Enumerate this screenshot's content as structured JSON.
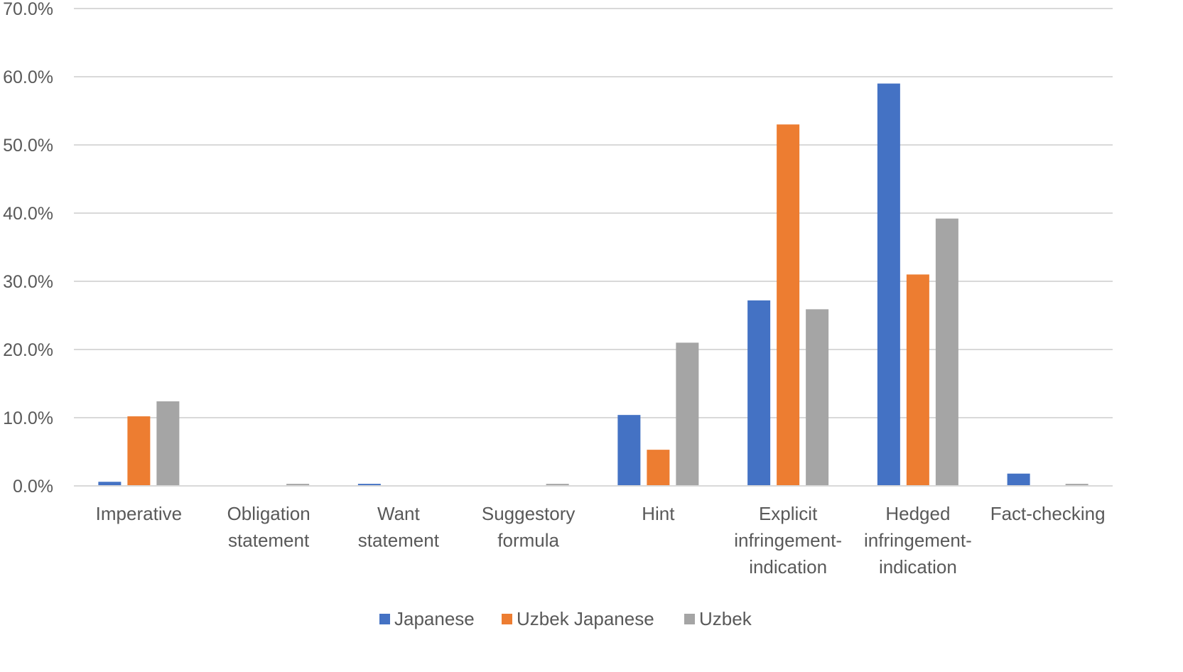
{
  "chart_data": {
    "type": "bar",
    "title": "",
    "xlabel": "",
    "ylabel": "",
    "ylim": [
      0,
      70
    ],
    "ytick_step": 10,
    "ytick_labels": [
      "0.0%",
      "10.0%",
      "20.0%",
      "30.0%",
      "40.0%",
      "50.0%",
      "60.0%",
      "70.0%"
    ],
    "grid": true,
    "legend_position": "bottom",
    "categories": [
      "Imperative",
      "Obligation statement",
      "Want statement",
      "Suggestory formula",
      "Hint",
      "Explicit infringement-indication",
      "Hedged infringement-indication",
      "Fact-checking"
    ],
    "category_lines": [
      [
        "Imperative"
      ],
      [
        "Obligation",
        "statement"
      ],
      [
        "Want",
        "statement"
      ],
      [
        "Suggestory",
        "formula"
      ],
      [
        "Hint"
      ],
      [
        "Explicit",
        "infringement-",
        "indication"
      ],
      [
        "Hedged",
        "infringement-",
        "indication"
      ],
      [
        "Fact-checking"
      ]
    ],
    "series": [
      {
        "name": "Japanese",
        "color": "#4472C4",
        "values": [
          0.6,
          0,
          0.3,
          0,
          10.4,
          27.2,
          59.0,
          1.8
        ]
      },
      {
        "name": "Uzbek Japanese",
        "color": "#ED7D31",
        "values": [
          10.2,
          0,
          0,
          0,
          5.3,
          53.0,
          31.0,
          0
        ]
      },
      {
        "name": "Uzbek",
        "color": "#A5A5A5",
        "values": [
          12.4,
          0.3,
          0,
          0.3,
          21.0,
          25.9,
          39.2,
          0.3
        ]
      }
    ]
  }
}
